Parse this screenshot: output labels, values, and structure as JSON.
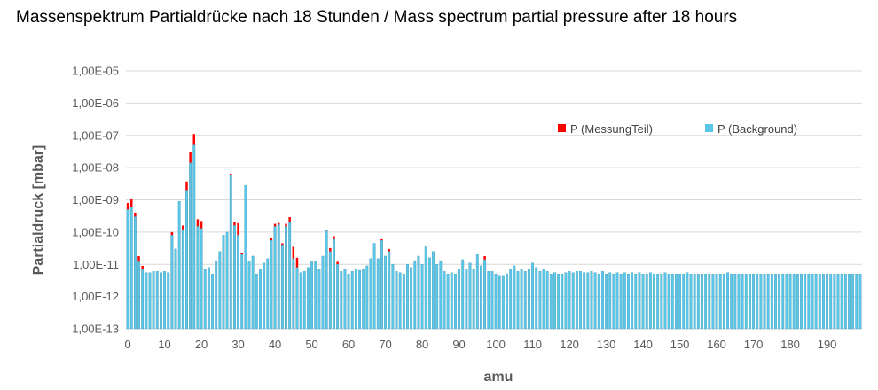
{
  "chart_data": {
    "type": "bar",
    "stacked": true,
    "title": "Massenspektrum Partialdrücke nach 18 Stunden / Mass spectrum partial pressure after 18 hours",
    "xlabel": "amu",
    "ylabel": "Partialdruck [mbar]",
    "y_scale": "log",
    "ylim": [
      1e-13,
      1e-05
    ],
    "y_tick_labels": [
      "1,00E-13",
      "1,00E-12",
      "1,00E-11",
      "1,00E-10",
      "1,00E-09",
      "1,00E-08",
      "1,00E-07",
      "1,00E-06",
      "1,00E-05"
    ],
    "x_tick_labels": [
      "0",
      "10",
      "20",
      "30",
      "40",
      "50",
      "60",
      "70",
      "80",
      "90",
      "100",
      "110",
      "120",
      "130",
      "140",
      "150",
      "160",
      "170",
      "180",
      "190"
    ],
    "x_range": [
      0,
      199
    ],
    "grid": "horizontal",
    "legend_position": "top-right",
    "series": [
      {
        "name": "P (MessungTeil)",
        "color": "#ff0000"
      },
      {
        "name": "P (Background)",
        "color": "#5bc7e6"
      }
    ],
    "background_points": [
      [
        0,
        5e-10
      ],
      [
        1,
        6e-10
      ],
      [
        2,
        3e-10
      ],
      [
        3,
        1.2e-11
      ],
      [
        4,
        7e-12
      ],
      [
        5,
        5.5e-12
      ],
      [
        6,
        5.5e-12
      ],
      [
        7,
        6e-12
      ],
      [
        8,
        6e-12
      ],
      [
        9,
        5.5e-12
      ],
      [
        10,
        6e-12
      ],
      [
        11,
        5.5e-12
      ],
      [
        12,
        8e-11
      ],
      [
        13,
        3e-11
      ],
      [
        14,
        9e-10
      ],
      [
        15,
        1.2e-10
      ],
      [
        16,
        2e-09
      ],
      [
        17,
        1.4e-08
      ],
      [
        18,
        5e-08
      ],
      [
        19,
        1.5e-10
      ],
      [
        20,
        1.3e-10
      ],
      [
        21,
        7e-12
      ],
      [
        22,
        8e-12
      ],
      [
        23,
        5e-12
      ],
      [
        24,
        1.3e-11
      ],
      [
        25,
        2.5e-11
      ],
      [
        26,
        8e-11
      ],
      [
        27,
        1e-10
      ],
      [
        28,
        6e-09
      ],
      [
        29,
        1.6e-10
      ],
      [
        30,
        8e-11
      ],
      [
        31,
        2e-11
      ],
      [
        32,
        2.8e-09
      ],
      [
        33,
        1.2e-11
      ],
      [
        34,
        1.8e-11
      ],
      [
        35,
        5e-12
      ],
      [
        36,
        7e-12
      ],
      [
        37,
        1.1e-11
      ],
      [
        38,
        1.5e-11
      ],
      [
        39,
        5.5e-11
      ],
      [
        40,
        1.5e-10
      ],
      [
        41,
        1.7e-10
      ],
      [
        42,
        4e-11
      ],
      [
        43,
        1.5e-10
      ],
      [
        44,
        2e-10
      ],
      [
        45,
        1.5e-11
      ],
      [
        46,
        8e-12
      ],
      [
        47,
        5.5e-12
      ],
      [
        48,
        6e-12
      ],
      [
        49,
        8e-12
      ],
      [
        50,
        1.2e-11
      ],
      [
        51,
        1.2e-11
      ],
      [
        52,
        7e-12
      ],
      [
        53,
        1.8e-11
      ],
      [
        54,
        1.1e-10
      ],
      [
        55,
        2.5e-11
      ],
      [
        56,
        6e-11
      ],
      [
        57,
        1e-11
      ],
      [
        58,
        6e-12
      ],
      [
        59,
        7e-12
      ],
      [
        60,
        5e-12
      ],
      [
        61,
        6e-12
      ],
      [
        62,
        7e-12
      ],
      [
        63,
        6.5e-12
      ],
      [
        64,
        7e-12
      ],
      [
        65,
        9e-12
      ],
      [
        66,
        1.5e-11
      ],
      [
        67,
        4.5e-11
      ],
      [
        68,
        1.5e-11
      ],
      [
        69,
        5.5e-11
      ],
      [
        70,
        1.8e-11
      ],
      [
        71,
        2.5e-11
      ],
      [
        72,
        1e-11
      ],
      [
        73,
        6e-12
      ],
      [
        74,
        5.5e-12
      ],
      [
        75,
        5e-12
      ],
      [
        76,
        1e-11
      ],
      [
        77,
        8e-12
      ],
      [
        78,
        1.3e-11
      ],
      [
        79,
        1.8e-11
      ],
      [
        80,
        1e-11
      ],
      [
        81,
        3.5e-11
      ],
      [
        82,
        1.6e-11
      ],
      [
        83,
        2.5e-11
      ],
      [
        84,
        1e-11
      ],
      [
        85,
        1.3e-11
      ],
      [
        86,
        6e-12
      ],
      [
        87,
        5e-12
      ],
      [
        88,
        5.5e-12
      ],
      [
        89,
        5e-12
      ],
      [
        90,
        7e-12
      ],
      [
        91,
        1.4e-11
      ],
      [
        92,
        7e-12
      ],
      [
        93,
        1.1e-11
      ],
      [
        94,
        7e-12
      ],
      [
        95,
        2e-11
      ],
      [
        96,
        9e-12
      ],
      [
        97,
        1.4e-11
      ],
      [
        98,
        6e-12
      ],
      [
        99,
        6e-12
      ],
      [
        100,
        5e-12
      ],
      [
        101,
        4.5e-12
      ],
      [
        102,
        4.5e-12
      ],
      [
        103,
        5e-12
      ],
      [
        104,
        7e-12
      ],
      [
        105,
        9e-12
      ],
      [
        106,
        6e-12
      ],
      [
        107,
        7e-12
      ],
      [
        108,
        6e-12
      ],
      [
        109,
        7e-12
      ],
      [
        110,
        1.1e-11
      ],
      [
        111,
        8e-12
      ],
      [
        112,
        6e-12
      ],
      [
        113,
        7e-12
      ],
      [
        114,
        6e-12
      ],
      [
        115,
        5e-12
      ],
      [
        116,
        5.5e-12
      ],
      [
        117,
        5e-12
      ],
      [
        118,
        5e-12
      ],
      [
        119,
        5.5e-12
      ],
      [
        120,
        6e-12
      ],
      [
        121,
        5.5e-12
      ],
      [
        122,
        6e-12
      ],
      [
        123,
        6e-12
      ],
      [
        124,
        5.5e-12
      ],
      [
        125,
        5.5e-12
      ],
      [
        126,
        6e-12
      ],
      [
        127,
        5.5e-12
      ],
      [
        128,
        5e-12
      ],
      [
        129,
        6e-12
      ],
      [
        130,
        5e-12
      ],
      [
        131,
        5.5e-12
      ],
      [
        132,
        5e-12
      ],
      [
        133,
        5.5e-12
      ],
      [
        134,
        5e-12
      ],
      [
        135,
        5.5e-12
      ],
      [
        136,
        5e-12
      ],
      [
        137,
        5.5e-12
      ],
      [
        138,
        5e-12
      ],
      [
        139,
        5.5e-12
      ],
      [
        140,
        5e-12
      ],
      [
        141,
        5e-12
      ],
      [
        142,
        5.5e-12
      ],
      [
        143,
        5e-12
      ],
      [
        144,
        5e-12
      ],
      [
        145,
        5e-12
      ],
      [
        146,
        5.5e-12
      ],
      [
        147,
        5e-12
      ],
      [
        148,
        5e-12
      ],
      [
        149,
        5e-12
      ],
      [
        150,
        5e-12
      ],
      [
        151,
        5e-12
      ],
      [
        152,
        5.5e-12
      ],
      [
        153,
        5e-12
      ],
      [
        154,
        5e-12
      ],
      [
        155,
        5e-12
      ],
      [
        156,
        5e-12
      ],
      [
        157,
        5e-12
      ],
      [
        158,
        5e-12
      ],
      [
        159,
        5e-12
      ],
      [
        160,
        5e-12
      ],
      [
        161,
        5e-12
      ],
      [
        162,
        5e-12
      ],
      [
        163,
        5.5e-12
      ],
      [
        164,
        5e-12
      ],
      [
        165,
        5e-12
      ],
      [
        166,
        5e-12
      ],
      [
        167,
        5e-12
      ],
      [
        168,
        5e-12
      ],
      [
        169,
        5e-12
      ],
      [
        170,
        5e-12
      ],
      [
        171,
        5e-12
      ],
      [
        172,
        5e-12
      ],
      [
        173,
        5e-12
      ],
      [
        174,
        5e-12
      ],
      [
        175,
        5e-12
      ],
      [
        176,
        5e-12
      ],
      [
        177,
        5e-12
      ],
      [
        178,
        5e-12
      ],
      [
        179,
        5e-12
      ],
      [
        180,
        5e-12
      ],
      [
        181,
        5e-12
      ],
      [
        182,
        5e-12
      ],
      [
        183,
        5e-12
      ],
      [
        184,
        5e-12
      ],
      [
        185,
        5e-12
      ],
      [
        186,
        5e-12
      ],
      [
        187,
        5e-12
      ],
      [
        188,
        5e-12
      ],
      [
        189,
        5e-12
      ],
      [
        190,
        5e-12
      ],
      [
        191,
        5e-12
      ],
      [
        192,
        5e-12
      ],
      [
        193,
        5e-12
      ],
      [
        194,
        5e-12
      ],
      [
        195,
        5e-12
      ],
      [
        196,
        5e-12
      ],
      [
        197,
        5e-12
      ],
      [
        198,
        5e-12
      ],
      [
        199,
        5e-12
      ]
    ],
    "measurement_total_points": [
      [
        0,
        8e-10
      ],
      [
        1,
        1.1e-09
      ],
      [
        2,
        4e-10
      ],
      [
        3,
        1.8e-11
      ],
      [
        4,
        9e-12
      ],
      [
        12,
        1e-10
      ],
      [
        15,
        1.6e-10
      ],
      [
        16,
        3.7e-09
      ],
      [
        17,
        3e-08
      ],
      [
        18,
        1.1e-07
      ],
      [
        19,
        2.5e-10
      ],
      [
        20,
        2.2e-10
      ],
      [
        28,
        6.5e-09
      ],
      [
        29,
        2e-10
      ],
      [
        30,
        1.9e-10
      ],
      [
        31,
        2.2e-11
      ],
      [
        39,
        6.5e-11
      ],
      [
        40,
        1.8e-10
      ],
      [
        41,
        1.9e-10
      ],
      [
        42,
        4.5e-11
      ],
      [
        43,
        1.8e-10
      ],
      [
        44,
        2.9e-10
      ],
      [
        45,
        3.5e-11
      ],
      [
        46,
        1.6e-11
      ],
      [
        54,
        1.2e-10
      ],
      [
        55,
        3.2e-11
      ],
      [
        56,
        7.5e-11
      ],
      [
        57,
        1.2e-11
      ],
      [
        69,
        6e-11
      ],
      [
        71,
        3e-11
      ],
      [
        97,
        1.8e-11
      ]
    ]
  },
  "colors": {
    "measurement": "#ff0000",
    "background": "#5bc7e6",
    "background_edge": "#4a9fc0",
    "grid": "#d9d9d9"
  }
}
